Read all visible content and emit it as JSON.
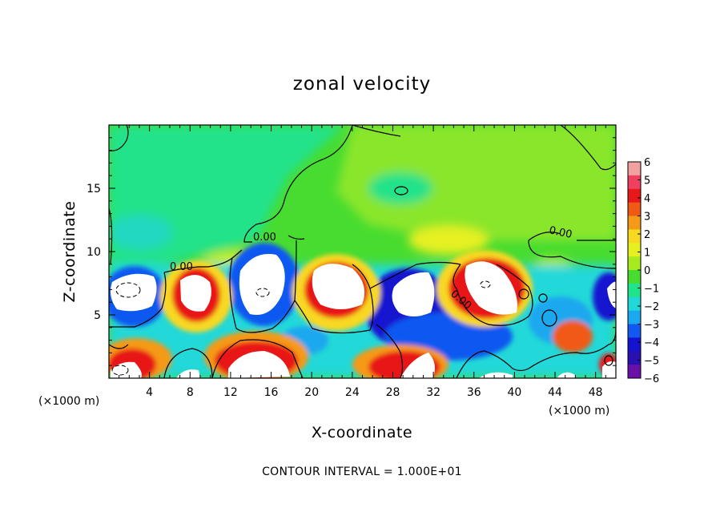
{
  "chart_data": {
    "type": "heatmap",
    "title": "zonal velocity",
    "xlabel": "X-coordinate",
    "ylabel": "Z-coordinate",
    "x_unit": "(×1000 m)",
    "xlim": [
      0,
      50
    ],
    "ylim": [
      0,
      20
    ],
    "x_ticks": [
      "4",
      "8",
      "12",
      "16",
      "20",
      "24",
      "28",
      "32",
      "36",
      "40",
      "44",
      "48"
    ],
    "y_ticks": [
      "5",
      "10",
      "15"
    ],
    "colorbar": {
      "min": -6,
      "max": 6,
      "tick_labels": [
        "6",
        "5",
        "4",
        "3",
        "2",
        "1",
        "0",
        "−1",
        "−2",
        "−3",
        "−4",
        "−5",
        "−6"
      ],
      "colors": [
        "#f2a0a0",
        "#f04060",
        "#e81818",
        "#f05a14",
        "#f59a18",
        "#f8d820",
        "#e6f020",
        "#a8ea20",
        "#48dc30",
        "#20e48a",
        "#20d8d8",
        "#1aa8ee",
        "#1058f0",
        "#1414d0",
        "#2a10b0",
        "#6a10a8"
      ]
    },
    "contour_labels": [
      "0.00",
      "0.00",
      "0.00",
      "0.00"
    ],
    "footer": "CONTOUR INTERVAL = 1.000E+01"
  }
}
